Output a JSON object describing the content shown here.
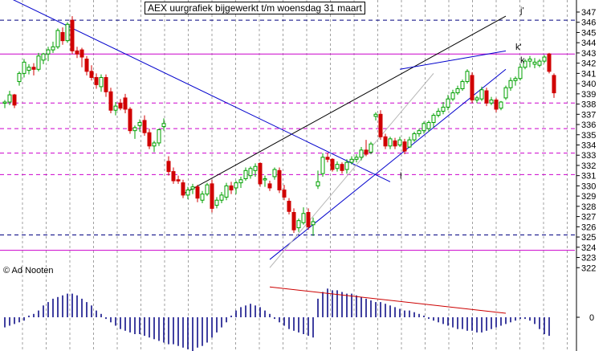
{
  "window": {
    "title": "AEX uurgrafiek bijgewerkt t/m woensdag 31 maart",
    "copyright": "© Ad Nooten"
  },
  "colors": {
    "up_candle": "#00a000",
    "down_candle": "#d00000",
    "trend_blue": "#0000cc",
    "trend_black": "#000000",
    "level_magenta": "#cc00cc",
    "level_navy": "#000080",
    "oscillator_bar": "#000080",
    "oscillator_trend": "#cc0000",
    "grid": "#a0a0a0"
  },
  "chart_data": [
    {
      "type": "candlestick",
      "title": "AEX uurgrafiek bijgewerkt t/m woensdag 31 maart",
      "ylim": [
        322,
        347.5
      ],
      "y_ticks": [
        322,
        323,
        324,
        325,
        326,
        327,
        328,
        329,
        330,
        331,
        332,
        333,
        334,
        335,
        336,
        337,
        338,
        339,
        340,
        341,
        342,
        343,
        344,
        345,
        346,
        347
      ],
      "grid": true,
      "candles": [
        [
          338.1,
          338.4,
          337.6,
          338.2
        ],
        [
          338.2,
          339.3,
          337.9,
          338.9
        ],
        [
          338.9,
          339.0,
          337.6,
          337.9
        ],
        [
          340.2,
          341.2,
          339.8,
          341.0
        ],
        [
          341.0,
          342.4,
          340.6,
          342.1
        ],
        [
          341.3,
          341.9,
          340.9,
          341.6
        ],
        [
          341.6,
          342.0,
          340.8,
          341.4
        ],
        [
          341.4,
          343.0,
          341.2,
          342.7
        ],
        [
          342.3,
          343.0,
          341.9,
          342.9
        ],
        [
          342.9,
          343.6,
          342.2,
          343.3
        ],
        [
          343.3,
          344.1,
          343.0,
          343.6
        ],
        [
          343.6,
          345.4,
          343.4,
          345.2
        ],
        [
          345.0,
          345.5,
          343.8,
          344.2
        ],
        [
          344.2,
          346.0,
          344.0,
          345.8
        ],
        [
          346.2,
          346.6,
          342.9,
          343.2
        ],
        [
          343.2,
          343.6,
          342.5,
          342.9
        ],
        [
          343.3,
          343.5,
          341.6,
          342.6
        ],
        [
          342.4,
          342.7,
          340.8,
          341.2
        ],
        [
          341.2,
          341.8,
          340.3,
          340.6
        ],
        [
          340.6,
          341.0,
          339.5,
          339.9
        ],
        [
          339.7,
          340.9,
          339.2,
          340.6
        ],
        [
          340.6,
          340.9,
          338.7,
          339.2
        ],
        [
          339.2,
          339.6,
          337.1,
          337.4
        ],
        [
          337.4,
          338.2,
          336.9,
          337.8
        ],
        [
          338.1,
          338.5,
          337.4,
          337.6
        ],
        [
          338.6,
          339.0,
          337.1,
          337.5
        ],
        [
          337.5,
          337.7,
          335.1,
          335.4
        ],
        [
          335.4,
          335.9,
          334.6,
          335.7
        ],
        [
          335.9,
          336.5,
          335.3,
          336.2
        ],
        [
          336.4,
          336.9,
          334.9,
          335.2
        ],
        [
          335.2,
          335.6,
          333.6,
          333.9
        ],
        [
          333.9,
          334.4,
          333.3,
          334.2
        ],
        [
          334.2,
          335.6,
          333.9,
          335.5
        ],
        [
          335.8,
          336.6,
          335.4,
          336.1
        ],
        [
          332.4,
          332.9,
          331.0,
          331.4
        ],
        [
          331.4,
          331.8,
          330.2,
          330.5
        ],
        [
          330.6,
          331.0,
          330.2,
          330.5
        ],
        [
          330.3,
          330.6,
          328.8,
          329.1
        ],
        [
          329.1,
          329.9,
          328.7,
          329.6
        ],
        [
          329.7,
          330.2,
          329.2,
          329.9
        ],
        [
          329.9,
          330.1,
          328.4,
          328.8
        ],
        [
          328.6,
          329.5,
          328.3,
          329.2
        ],
        [
          329.2,
          330.3,
          329.0,
          330.1
        ],
        [
          330.2,
          330.6,
          327.4,
          327.8
        ],
        [
          328.1,
          328.9,
          327.8,
          328.6
        ],
        [
          328.6,
          329.4,
          328.3,
          329.1
        ],
        [
          328.9,
          330.3,
          328.6,
          330.0
        ],
        [
          330.0,
          330.4,
          329.2,
          329.6
        ],
        [
          329.8,
          330.5,
          329.2,
          330.3
        ],
        [
          330.3,
          330.9,
          329.8,
          330.6
        ],
        [
          330.7,
          331.8,
          330.5,
          331.5
        ],
        [
          331.0,
          331.9,
          330.7,
          331.7
        ],
        [
          331.5,
          332.2,
          330.9,
          331.9
        ],
        [
          332.2,
          332.3,
          329.9,
          330.2
        ],
        [
          330.6,
          331.0,
          329.9,
          330.7
        ],
        [
          330.2,
          330.5,
          329.5,
          329.8
        ],
        [
          330.9,
          331.8,
          330.6,
          331.6
        ],
        [
          331.5,
          331.8,
          329.3,
          329.6
        ],
        [
          329.6,
          330.1,
          328.6,
          328.9
        ],
        [
          328.5,
          328.8,
          327.2,
          327.5
        ],
        [
          327.4,
          327.8,
          325.4,
          325.7
        ],
        [
          325.9,
          326.8,
          325.5,
          326.6
        ],
        [
          326.4,
          327.9,
          326.2,
          327.3
        ],
        [
          327.4,
          327.8,
          325.7,
          326.0
        ],
        [
          326.2,
          326.9,
          325.1,
          326.5
        ],
        [
          330.0,
          331.5,
          329.7,
          330.4
        ],
        [
          331.2,
          333.2,
          330.9,
          332.8
        ],
        [
          332.8,
          333.2,
          332.3,
          332.6
        ],
        [
          332.6,
          332.7,
          331.4,
          331.6
        ],
        [
          331.7,
          332.4,
          331.4,
          332.1
        ],
        [
          332.1,
          332.3,
          331.2,
          331.5
        ],
        [
          331.6,
          332.6,
          331.2,
          332.3
        ],
        [
          332.3,
          332.9,
          332.1,
          332.6
        ],
        [
          332.6,
          333.1,
          332.3,
          332.8
        ],
        [
          332.8,
          333.8,
          332.5,
          333.5
        ],
        [
          333.5,
          334.5,
          332.9,
          333.1
        ],
        [
          333.3,
          334.3,
          333.1,
          334.1
        ],
        [
          336.8,
          337.2,
          336.4,
          337.0
        ],
        [
          337.0,
          337.4,
          334.5,
          334.8
        ],
        [
          334.8,
          335.1,
          333.6,
          333.9
        ],
        [
          333.9,
          334.8,
          333.6,
          334.6
        ],
        [
          334.4,
          334.7,
          333.6,
          333.9
        ],
        [
          334.0,
          334.8,
          333.8,
          334.5
        ],
        [
          334.3,
          334.6,
          333.1,
          333.4
        ],
        [
          333.8,
          334.8,
          333.7,
          334.5
        ],
        [
          334.5,
          335.3,
          334.3,
          335.1
        ],
        [
          335.1,
          335.6,
          334.8,
          335.4
        ],
        [
          335.4,
          336.3,
          335.1,
          336.1
        ],
        [
          335.6,
          336.4,
          335.3,
          336.2
        ],
        [
          336.2,
          337.1,
          335.7,
          336.9
        ],
        [
          336.9,
          337.6,
          336.7,
          337.3
        ],
        [
          337.3,
          338.2,
          337.0,
          337.7
        ],
        [
          337.7,
          338.9,
          337.4,
          338.5
        ],
        [
          338.5,
          339.4,
          338.3,
          339.1
        ],
        [
          339.1,
          339.8,
          338.9,
          339.5
        ],
        [
          339.5,
          340.4,
          339.3,
          340.2
        ],
        [
          340.2,
          341.4,
          340.0,
          341.2
        ],
        [
          340.8,
          341.1,
          338.1,
          338.4
        ],
        [
          338.4,
          338.8,
          338.1,
          338.6
        ],
        [
          338.5,
          339.7,
          338.3,
          339.4
        ],
        [
          339.3,
          339.6,
          337.8,
          338.1
        ],
        [
          338.1,
          338.7,
          337.9,
          338.4
        ],
        [
          338.4,
          338.6,
          337.2,
          337.5
        ],
        [
          337.6,
          338.3,
          337.4,
          338.2
        ],
        [
          338.6,
          339.8,
          338.4,
          339.6
        ],
        [
          339.6,
          340.6,
          339.3,
          340.3
        ],
        [
          340.3,
          340.7,
          339.8,
          340.5
        ],
        [
          340.5,
          341.9,
          340.3,
          341.6
        ],
        [
          341.6,
          342.4,
          341.4,
          342.2
        ],
        [
          342.2,
          342.7,
          341.6,
          342.4
        ],
        [
          341.9,
          342.5,
          341.5,
          342.1
        ],
        [
          341.8,
          342.4,
          341.6,
          342.2
        ],
        [
          342.2,
          342.8,
          342.0,
          342.6
        ],
        [
          342.9,
          343.0,
          341.0,
          341.2
        ],
        [
          340.8,
          341.0,
          338.6,
          339.1
        ]
      ],
      "horizontal_levels": [
        {
          "value": 346.2,
          "color": "navy",
          "style": "dashed"
        },
        {
          "value": 342.9,
          "color": "magenta",
          "style": "solid"
        },
        {
          "value": 338.1,
          "color": "magenta",
          "style": "dashed"
        },
        {
          "value": 335.6,
          "color": "magenta",
          "style": "dashed"
        },
        {
          "value": 333.2,
          "color": "magenta",
          "style": "dashed"
        },
        {
          "value": 331.1,
          "color": "magenta",
          "style": "dashed"
        },
        {
          "value": 325.2,
          "color": "navy",
          "style": "dashed"
        },
        {
          "value": 323.7,
          "color": "magenta",
          "style": "solid"
        }
      ],
      "trend_lines": [
        {
          "name": "j'",
          "color": "black",
          "from": [
            37,
            329.2
          ],
          "to": [
            104,
            346.6
          ]
        },
        {
          "name": "l",
          "color": "blue",
          "from": [
            0,
            348.6
          ],
          "to": [
            80,
            330.4
          ]
        },
        {
          "name": "k",
          "color": "blue",
          "from": [
            55,
            322.8
          ],
          "to": [
            104,
            341.4
          ]
        },
        {
          "name": "k'",
          "color": "blue",
          "from": [
            82,
            341.4
          ],
          "to": [
            104,
            343.2
          ]
        },
        {
          "name": "",
          "color": "lightgrey",
          "from": [
            55,
            322.0
          ],
          "to": [
            89,
            341.0
          ]
        }
      ],
      "annotations": [
        {
          "text": "j'",
          "index": 107,
          "value": 346.9
        },
        {
          "text": "k'",
          "index": 106,
          "value": 343.3
        },
        {
          "text": "k",
          "index": 107,
          "value": 342.0
        },
        {
          "text": "l",
          "index": 82,
          "value": 330.7
        }
      ]
    },
    {
      "type": "bar",
      "name": "oscillator",
      "y_ticks": [
        0
      ],
      "values": [
        -0.3,
        -0.25,
        -0.2,
        -0.15,
        -0.1,
        0.05,
        0.1,
        0.2,
        0.35,
        0.45,
        0.55,
        0.6,
        0.65,
        0.7,
        0.7,
        0.65,
        0.55,
        0.45,
        0.35,
        0.2,
        0.1,
        -0.05,
        -0.15,
        -0.25,
        -0.35,
        -0.4,
        -0.45,
        -0.5,
        -0.5,
        -0.55,
        -0.6,
        -0.65,
        -0.7,
        -0.75,
        -0.8,
        -0.8,
        -0.85,
        -0.9,
        -0.95,
        -1.0,
        -0.9,
        -0.85,
        -0.75,
        -0.6,
        -0.45,
        -0.3,
        -0.15,
        0.05,
        0.2,
        0.3,
        0.35,
        0.4,
        0.35,
        0.3,
        0.2,
        0.1,
        -0.05,
        -0.15,
        -0.25,
        -0.35,
        -0.4,
        -0.45,
        -0.5,
        -0.55,
        -0.6,
        0.55,
        0.75,
        0.85,
        0.8,
        0.8,
        0.75,
        0.7,
        0.7,
        0.65,
        0.6,
        0.55,
        0.5,
        0.45,
        0.45,
        0.4,
        0.35,
        0.3,
        0.25,
        0.2,
        0.2,
        0.15,
        0.1,
        0.05,
        -0.05,
        -0.1,
        -0.15,
        -0.2,
        -0.25,
        -0.3,
        -0.35,
        -0.35,
        -0.4,
        -0.4,
        -0.45,
        -0.45,
        -0.4,
        -0.35,
        -0.3,
        -0.25,
        -0.2,
        -0.15,
        -0.1,
        -0.05,
        -0.05,
        -0.1,
        -0.2,
        -0.35,
        -0.5,
        -0.55
      ],
      "trend_line": {
        "color": "red",
        "from": [
          55,
          0.9
        ],
        "to": [
          104,
          0.12
        ]
      }
    }
  ]
}
